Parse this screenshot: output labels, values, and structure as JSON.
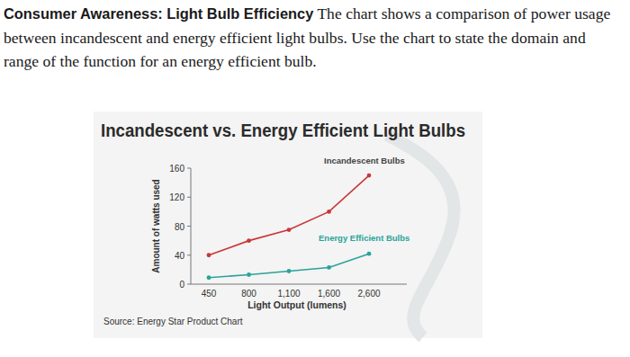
{
  "question": {
    "title": "Consumer Awareness: Light Bulb Efficiency",
    "text": "The chart shows a comparison of power usage between incandescent and energy efficient light bulbs. Use the chart to state the domain and range of the function for an energy efficient bulb."
  },
  "chart_data": {
    "type": "line",
    "title": "Incandescent vs. Energy Efficient Light Bulbs",
    "x_label": "Light Output (lumens)",
    "y_label": "Amount of watts used",
    "annotations": [
      "Source: Energy Star Product Chart"
    ],
    "categories": [
      "450",
      "800",
      "1,100",
      "1,600",
      "2,600"
    ],
    "series": [
      {
        "name": "Incandescent Bulbs",
        "color": "#c8373a",
        "marker": "circle",
        "values": [
          40,
          60,
          75,
          100,
          150
        ]
      },
      {
        "name": "Energy Efficient Bulbs",
        "color": "#2aa39a",
        "marker": "circle",
        "values": [
          9,
          13,
          18,
          23,
          42
        ]
      }
    ],
    "ylim": [
      0,
      160
    ],
    "yticks": [
      0,
      40,
      80,
      120,
      160
    ],
    "grid": false
  }
}
